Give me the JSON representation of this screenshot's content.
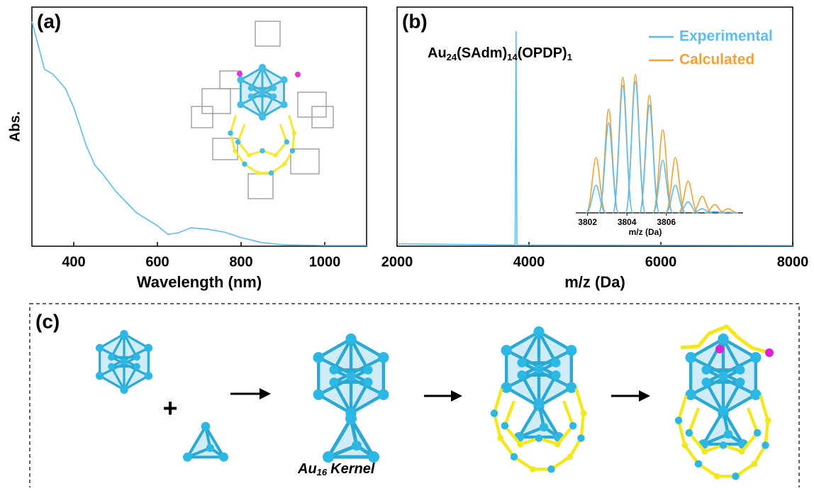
{
  "chart_data": [
    {
      "type": "line",
      "label": "(a)",
      "xlabel": "Wavelength (nm)",
      "ylabel": "Abs.",
      "xlim": [
        300,
        1100
      ],
      "xticks": [
        400,
        600,
        800,
        1000
      ],
      "ylim": [
        0,
        1
      ],
      "series": [
        {
          "color": "#5bbdf0",
          "x": [
            300,
            330,
            350,
            380,
            400,
            430,
            450,
            470,
            500,
            550,
            600,
            625,
            650,
            680,
            720,
            760,
            800,
            850,
            900,
            1000,
            1100
          ],
          "values": [
            0.94,
            0.74,
            0.72,
            0.66,
            0.58,
            0.42,
            0.34,
            0.3,
            0.23,
            0.14,
            0.086,
            0.05,
            0.056,
            0.077,
            0.071,
            0.059,
            0.036,
            0.015,
            0.006,
            0.003,
            0.003
          ]
        }
      ]
    },
    {
      "type": "line",
      "label": "(b)",
      "xlabel": "m/z (Da)",
      "annotation": [
        "Au",
        "24",
        "(SAdm)",
        "14",
        "(OPDP)",
        "1"
      ],
      "xlim": [
        2000,
        8000
      ],
      "xticks": [
        2000,
        4000,
        6000,
        8000
      ],
      "ylim": [
        0,
        1
      ],
      "series": [
        {
          "color": "#5bbdf0",
          "x": [
            2000,
            3790,
            3804,
            3818,
            8000
          ],
          "values": [
            0.01,
            0.005,
            0.9,
            0.005,
            0.003
          ]
        }
      ],
      "inset": {
        "type": "peaks",
        "xlabel": "m/z (Da)",
        "xlim": [
          3801.4,
          3809.9
        ],
        "xticks": [
          3802,
          3804,
          3806
        ],
        "ylim": [
          0,
          1
        ],
        "series": [
          {
            "name": "Experimental",
            "color": "#5bbdf0",
            "x": [
              3802.43,
              3803.07,
              3803.79,
              3804.43,
              3805.14,
              3805.82,
              3806.46,
              3807.11,
              3807.82,
              3808.46,
              3809.14
            ],
            "values": [
              0.2,
              0.65,
              0.92,
              0.95,
              0.78,
              0.38,
              0.2,
              0.08,
              0.03,
              0.01,
              0.005
            ]
          },
          {
            "name": "Calculated",
            "color": "#f5a030",
            "x": [
              3802.43,
              3803.07,
              3803.79,
              3804.43,
              3805.14,
              3805.82,
              3806.46,
              3807.11,
              3807.82,
              3808.46,
              3809.14
            ],
            "values": [
              0.4,
              0.75,
              0.98,
              1.0,
              0.85,
              0.6,
              0.4,
              0.23,
              0.12,
              0.06,
              0.03
            ]
          }
        ]
      }
    }
  ],
  "panel_c": {
    "label": "(c)",
    "plus": "+",
    "kernel": [
      "Au",
      "16",
      "Kernel"
    ]
  }
}
